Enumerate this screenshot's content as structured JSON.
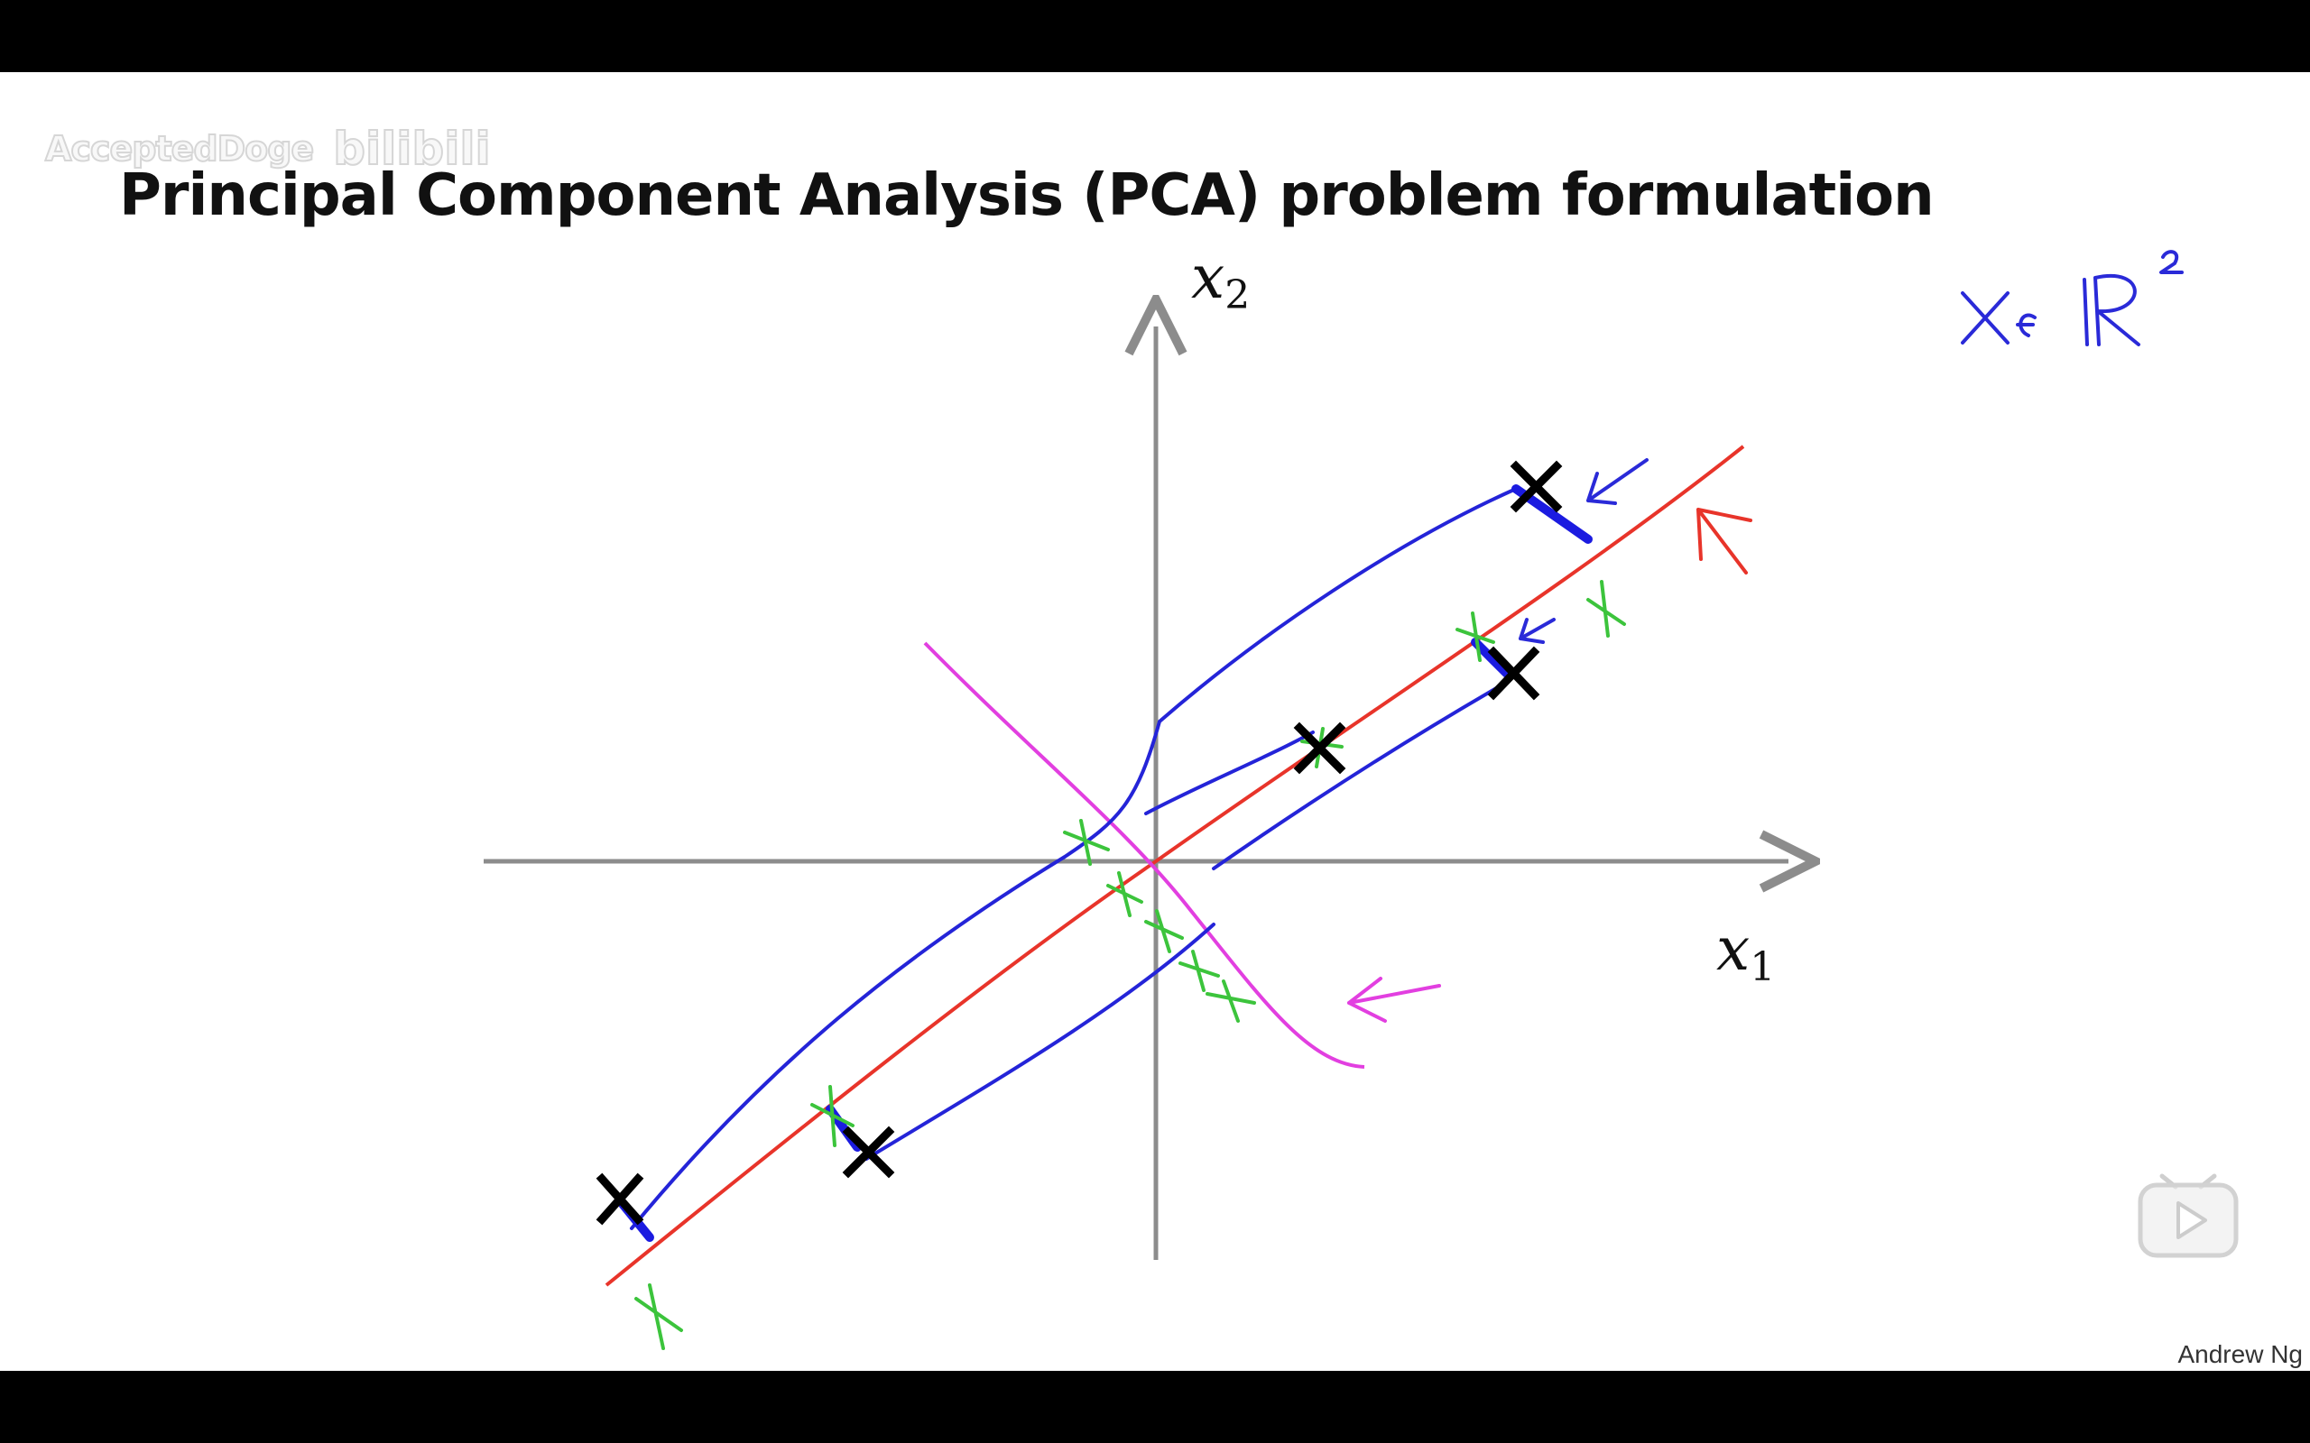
{
  "watermark": {
    "user": "AcceptedDoge",
    "logo": "bilibili"
  },
  "slide": {
    "title": "Principal Component Analysis (PCA) problem formulation",
    "credit": "Andrew Ng",
    "x1_label": "x",
    "x1_sub": "1",
    "x2_label": "x",
    "x2_sub": "2",
    "annotation_handwritten": "x∈ℝ²"
  },
  "colors": {
    "axis": "#8c8c8c",
    "points": "#000000",
    "projection_line": "#e8342a",
    "orthogonal_line": "#e23fe0",
    "projection_marks": "#3cc43c",
    "projection_paths": "#2424d8",
    "annotation": "#2a2ad8"
  },
  "controls": {
    "play_icon": "play-icon"
  }
}
